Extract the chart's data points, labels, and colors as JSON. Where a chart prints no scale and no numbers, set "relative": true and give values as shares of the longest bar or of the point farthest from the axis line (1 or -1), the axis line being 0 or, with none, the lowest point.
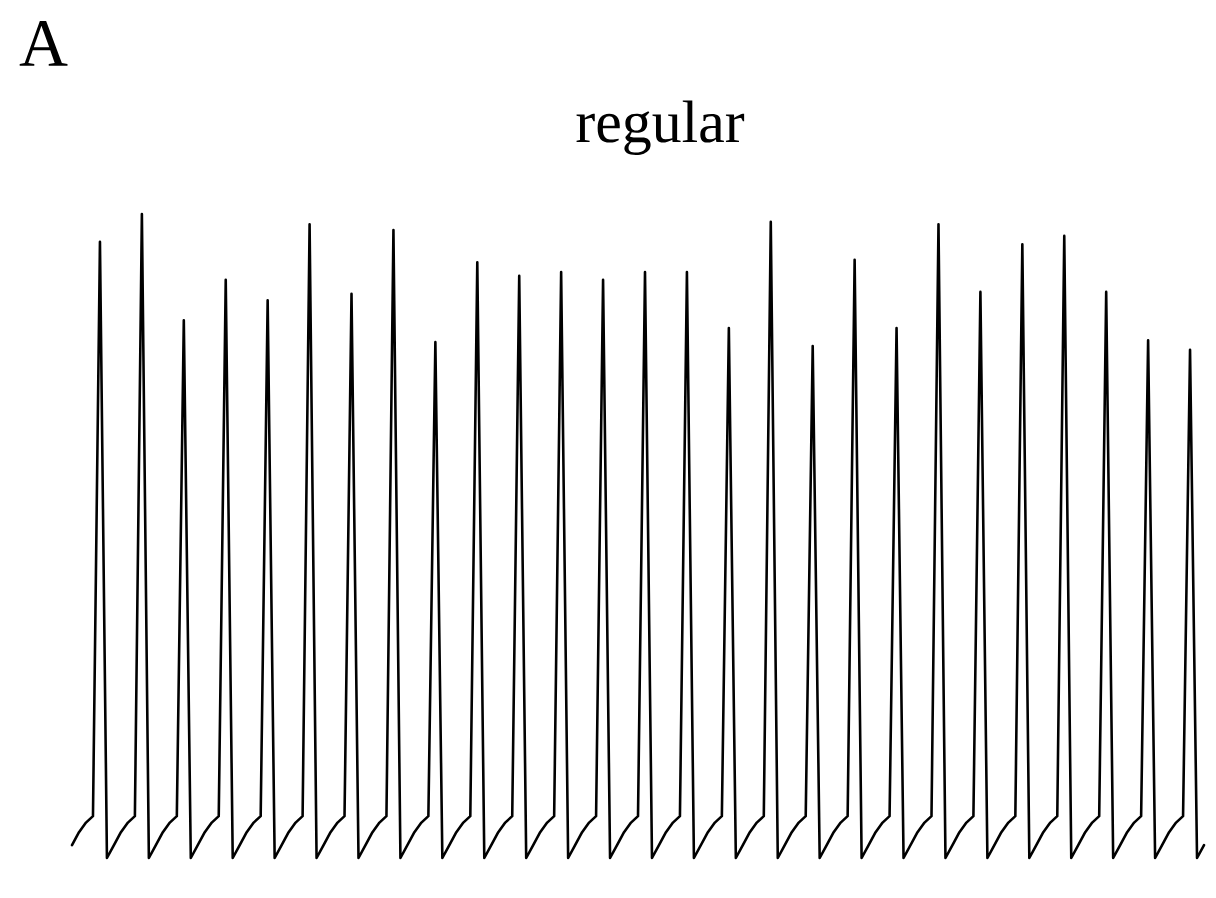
{
  "chart_data": {
    "type": "line",
    "title": "regular",
    "annotations": [
      "A"
    ],
    "relative": true,
    "color": "#000000",
    "categories": [
      null,
      null,
      null,
      null,
      null,
      null,
      null,
      null,
      null,
      null,
      null,
      null,
      null,
      null,
      null,
      null,
      null,
      null,
      null,
      null,
      null,
      null,
      null,
      null,
      null,
      null,
      null,
      null,
      null,
      null,
      null,
      null,
      null,
      null,
      null,
      null,
      null,
      null,
      null,
      null,
      null,
      null,
      null,
      null,
      null,
      null,
      null,
      null,
      null,
      null,
      null,
      null,
      null,
      null,
      null,
      null,
      null,
      null,
      null,
      null,
      null,
      null,
      null,
      null,
      null,
      null,
      null,
      null,
      null,
      null,
      null,
      null,
      null,
      null,
      null,
      null,
      null,
      null,
      null,
      null,
      null,
      null,
      null,
      null,
      null,
      null,
      null,
      null,
      null,
      null,
      null,
      null,
      null,
      null,
      null,
      null,
      null,
      null,
      null,
      null,
      null,
      null,
      null,
      null,
      null,
      null,
      null,
      null,
      null,
      null,
      null,
      null,
      null,
      null,
      null,
      null,
      null,
      null,
      null,
      null,
      null,
      null,
      null,
      null,
      null,
      null,
      null,
      null,
      null,
      null,
      null,
      null,
      null,
      null,
      null,
      null,
      null,
      null,
      null,
      null,
      null,
      null,
      null,
      null,
      null,
      null,
      null,
      null,
      null,
      null,
      null,
      null,
      null,
      null,
      null,
      null,
      null,
      null,
      null,
      null,
      null,
      null,
      null
    ],
    "values": [
      0.02,
      0.04,
      0.055,
      0.065,
      0.957,
      0,
      0.02,
      0.04,
      0.055,
      0.065,
      1,
      0,
      0.02,
      0.04,
      0.055,
      0.065,
      0.835,
      0,
      0.02,
      0.04,
      0.055,
      0.065,
      0.898,
      0,
      0.02,
      0.04,
      0.055,
      0.065,
      0.866,
      0,
      0.02,
      0.04,
      0.055,
      0.065,
      0.984,
      0,
      0.02,
      0.04,
      0.055,
      0.065,
      0.876,
      0,
      0.02,
      0.04,
      0.055,
      0.065,
      0.975,
      0,
      0.02,
      0.04,
      0.055,
      0.065,
      0.801,
      0,
      0.02,
      0.04,
      0.055,
      0.065,
      0.925,
      0,
      0.02,
      0.04,
      0.055,
      0.065,
      0.904,
      0,
      0.02,
      0.04,
      0.055,
      0.065,
      0.91,
      0,
      0.02,
      0.04,
      0.055,
      0.065,
      0.898,
      0,
      0.02,
      0.04,
      0.055,
      0.065,
      0.91,
      0,
      0.02,
      0.04,
      0.055,
      0.065,
      0.91,
      0,
      0.02,
      0.04,
      0.055,
      0.065,
      0.823,
      0,
      0.02,
      0.04,
      0.055,
      0.065,
      0.988,
      0,
      0.02,
      0.04,
      0.055,
      0.065,
      0.795,
      0,
      0.02,
      0.04,
      0.055,
      0.065,
      0.929,
      0,
      0.02,
      0.04,
      0.055,
      0.065,
      0.823,
      0,
      0.02,
      0.04,
      0.055,
      0.065,
      0.984,
      0,
      0.02,
      0.04,
      0.055,
      0.065,
      0.879,
      0,
      0.02,
      0.04,
      0.055,
      0.065,
      0.953,
      0,
      0.02,
      0.04,
      0.055,
      0.065,
      0.966,
      0,
      0.02,
      0.04,
      0.055,
      0.065,
      0.879,
      0,
      0.02,
      0.04,
      0.055,
      0.065,
      0.804,
      0,
      0.02,
      0.04,
      0.055,
      0.065,
      0.789,
      0,
      0.02
    ]
  }
}
